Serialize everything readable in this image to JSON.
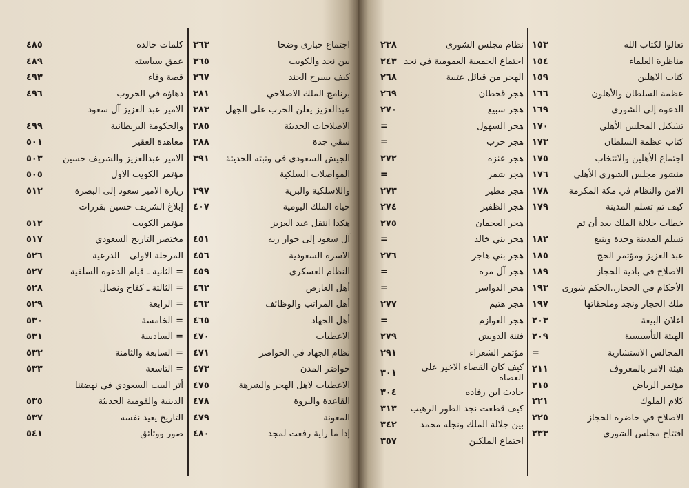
{
  "left_page": {
    "left_column": [
      {
        "title": "كلمات خالدة",
        "page": "٤٨٥"
      },
      {
        "title": "عمق سياسته",
        "page": "٤٨٩"
      },
      {
        "title": "قصة وفاء",
        "page": "٤٩٣"
      },
      {
        "title": "دهاؤه في الحروب",
        "page": "٤٩٦"
      },
      {
        "title": "الامير عبد العزيز آل سعود",
        "page": ""
      },
      {
        "title": "والحكومة البريطانية",
        "page": "٤٩٩"
      },
      {
        "title": "معاهدة العقير",
        "page": "٥٠١"
      },
      {
        "title": "الامير عبدالعزيز والشريف حسين",
        "page": "٥٠٣"
      },
      {
        "title": "مؤتمر الكويت الاول",
        "page": "٥٠٥"
      },
      {
        "title": "زيارة الامير سعود إلى البصرة",
        "page": "٥١٢"
      },
      {
        "title": "إبلاغ الشريف حسين بقررات",
        "page": ""
      },
      {
        "title": "مؤتمر الكويت",
        "page": "٥١٢"
      },
      {
        "title": "مختصر التاريخ السعودي",
        "page": "٥١٧"
      },
      {
        "title": "المرحلة الاولى – الدرعية",
        "page": "٥٢٦"
      },
      {
        "title": "=  الثانية ـ قيام الدعوة السلفية",
        "page": "٥٢٧"
      },
      {
        "title": "=  الثالثة ـ كفاح ونضال",
        "page": "٥٢٨"
      },
      {
        "title": "=  الرابعة",
        "page": "٥٢٩"
      },
      {
        "title": "=  الخامسة",
        "page": "٥٣٠"
      },
      {
        "title": "=  السادسة",
        "page": "٥٣١"
      },
      {
        "title": "=  السابعة والثامنة",
        "page": "٥٣٢"
      },
      {
        "title": "=  التاسعة",
        "page": "٥٣٣"
      },
      {
        "title": "أثر البيت السعودي في نهضتنا",
        "page": ""
      },
      {
        "title": "الدينية والقومية الحديثة",
        "page": "٥٣٥"
      },
      {
        "title": "التاريخ يعيد نفسه",
        "page": "٥٣٧"
      },
      {
        "title": "صور ووثائق",
        "page": "٥٤١"
      }
    ],
    "right_column": [
      {
        "title": "اجتماع خبارى وضحا",
        "page": "٣٦٣"
      },
      {
        "title": "بين نجد والكويت",
        "page": "٣٦٥"
      },
      {
        "title": "كيف يسرح الجند",
        "page": "٣٦٧"
      },
      {
        "title": "برنامج الملك الاصلاحي",
        "page": "٣٨١"
      },
      {
        "title": "عبدالعزيز يعلن الحرب على الجهل",
        "page": "٣٨٣"
      },
      {
        "title": "الاصلاحات الحديثة",
        "page": "٣٨٥"
      },
      {
        "title": "سقي جدة",
        "page": "٣٨٨"
      },
      {
        "title": "الجيش السعودي في وثبته الحديثة",
        "page": "٣٩١"
      },
      {
        "title": "المواصلات السلكية",
        "page": ""
      },
      {
        "title": "واللاسلكية والبرية",
        "page": "٣٩٧"
      },
      {
        "title": "حياة الملك اليومية",
        "page": "٤٠٧"
      },
      {
        "title": "هكذا انتقل عبد العزيز",
        "page": ""
      },
      {
        "title": "آل سعود إلى جوار ربه",
        "page": "٤٥١"
      },
      {
        "title": "الاسرة السعودية",
        "page": "٤٥٦"
      },
      {
        "title": "النظام العسكري",
        "page": "٤٥٩"
      },
      {
        "title": "أهل العارض",
        "page": "٤٦٢"
      },
      {
        "title": "أهل المراتب والوظائف",
        "page": "٤٦٣"
      },
      {
        "title": "أهل الجهاد",
        "page": "٤٦٥"
      },
      {
        "title": "الاعطيات",
        "page": "٤٧٠"
      },
      {
        "title": "نظام الجهاد في الحواضر",
        "page": "٤٧١"
      },
      {
        "title": "حواضر المدن",
        "page": "٤٧٣"
      },
      {
        "title": "الاعطيات لاهل الهجر والشرهة",
        "page": "٤٧٥"
      },
      {
        "title": "القاعدة والبروة",
        "page": "٤٧٨"
      },
      {
        "title": "المعونة",
        "page": "٤٧٩"
      },
      {
        "title": "إذا ما راية رفعت لمجد",
        "page": "٤٨٠"
      }
    ]
  },
  "right_page": {
    "left_column": [
      {
        "title": "نظام مجلس الشورى",
        "page": "٢٣٨"
      },
      {
        "title": "اجتماع الجمعية العمومية في نجد",
        "page": "٢٤٣"
      },
      {
        "title": "الهجر من قبائل عتيبة",
        "page": "٢٦٨"
      },
      {
        "title": "هجر قحطان",
        "page": "٢٦٩"
      },
      {
        "title": "هجر سبيع",
        "page": "٢٧٠"
      },
      {
        "title": "هجر السهول",
        "page": "="
      },
      {
        "title": "هجر حرب",
        "page": "="
      },
      {
        "title": "هجر عنزه",
        "page": "٢٧٢"
      },
      {
        "title": "هجر شمر",
        "page": "="
      },
      {
        "title": "هجر مطير",
        "page": "٢٧٣"
      },
      {
        "title": "هجر الظفير",
        "page": "٢٧٤"
      },
      {
        "title": "هجر العجمان",
        "page": "٢٧٥"
      },
      {
        "title": "هجر بني خالد",
        "page": "="
      },
      {
        "title": "هجر بني هاجر",
        "page": "٢٧٦"
      },
      {
        "title": "هجر آل مرة",
        "page": "="
      },
      {
        "title": "هجر الدواسر",
        "page": "="
      },
      {
        "title": "هجر هتيم",
        "page": "٢٧٧"
      },
      {
        "title": "هجر العوازم",
        "page": "="
      },
      {
        "title": "فتنة الدويش",
        "page": "٢٧٩"
      },
      {
        "title": "مؤتمر الشعراء",
        "page": "٢٩١"
      },
      {
        "title": "كيف كان القضاء الاخير على العصاة",
        "page": "٣٠١"
      },
      {
        "title": "حادث ابن رفاده",
        "page": "٣٠٤"
      },
      {
        "title": "كيف قطعت نجد الطور الرهيب",
        "page": "٣١٣"
      },
      {
        "title": "بين جلالة الملك ونجله محمد",
        "page": "٣٤٢"
      },
      {
        "title": "اجتماع الملكين",
        "page": "٣٥٧"
      }
    ],
    "right_column": [
      {
        "title": "تعالوا لكتاب الله",
        "page": "١٥٣"
      },
      {
        "title": "مناظرة العلماء",
        "page": "١٥٤"
      },
      {
        "title": "كتاب الاهلين",
        "page": "١٥٩"
      },
      {
        "title": "عظمة السلطان والأهلون",
        "page": "١٦٦"
      },
      {
        "title": "الدعوة إلى الشورى",
        "page": "١٦٩"
      },
      {
        "title": "تشكيل المجلس الأهلي",
        "page": "١٧٠"
      },
      {
        "title": "كتاب عظمة السلطان",
        "page": "١٧٣"
      },
      {
        "title": "اجتماع الأهلين والانتخاب",
        "page": "١٧٥"
      },
      {
        "title": "منشور مجلس الشورى الأهلي",
        "page": "١٧٦"
      },
      {
        "title": "الامن والنظام في مكة المكرمة",
        "page": "١٧٨"
      },
      {
        "title": "كيف تم تسلم المدينة",
        "page": "١٧٩"
      },
      {
        "title": "خطاب جلالة الملك بعد أن تم",
        "page": ""
      },
      {
        "title": "تسلم المدينة وجدة وينبع",
        "page": "١٨٢"
      },
      {
        "title": "عبد العزيز ومؤتمر الحج",
        "page": "١٨٥"
      },
      {
        "title": "الاصلاح في بادية الحجاز",
        "page": "١٨٩"
      },
      {
        "title": "الأحكام في الحجاز..الحكم شورى",
        "page": "١٩٣"
      },
      {
        "title": "ملك الحجاز ونجد وملحقاتها",
        "page": "١٩٧"
      },
      {
        "title": "اعلان البيعة",
        "page": "٢٠٣"
      },
      {
        "title": "الهيئة التأسيسية",
        "page": "٢٠٩"
      },
      {
        "title": "المجالس الاستشارية",
        "page": "="
      },
      {
        "title": "هيئة الامر بالمعروف",
        "page": "٢١١"
      },
      {
        "title": "مؤتمر الرياض",
        "page": "٢١٥"
      },
      {
        "title": "كلام الملوك",
        "page": "٢٢١"
      },
      {
        "title": "الاصلاح في حاضرة الحجاز",
        "page": "٢٢٥"
      },
      {
        "title": "افتتاح مجلس الشورى",
        "page": "٢٣٣"
      }
    ]
  }
}
